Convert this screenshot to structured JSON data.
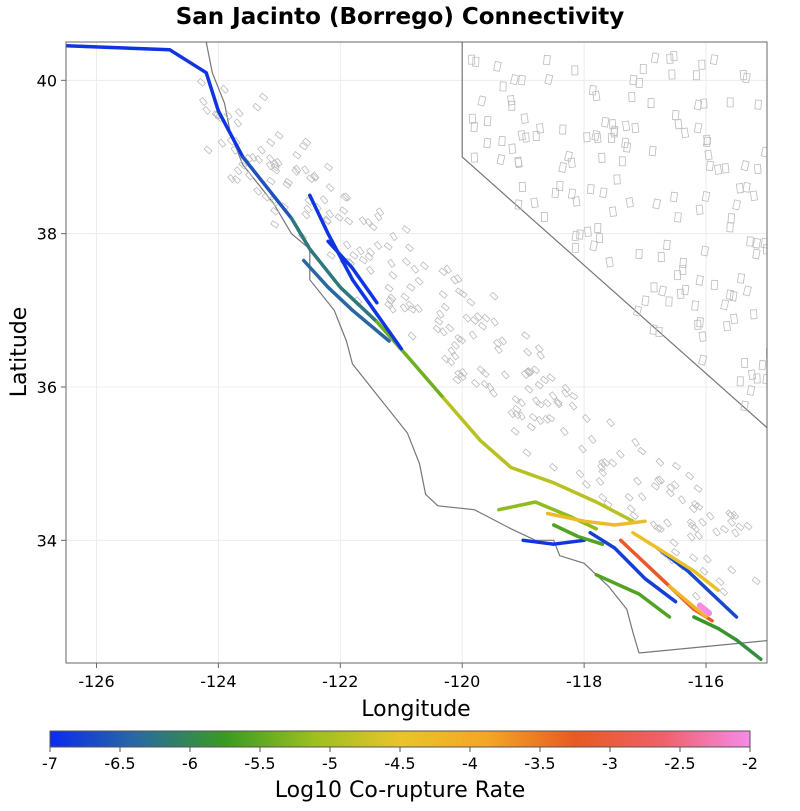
{
  "chart_data": {
    "type": "map",
    "title": "San Jacinto (Borrego) Connectivity",
    "xlabel": "Longitude",
    "ylabel": "Latitude",
    "xlim": [
      -126.5,
      -115.0
    ],
    "ylim": [
      32.4,
      40.5
    ],
    "xticks": [
      -126,
      -124,
      -122,
      -120,
      -118,
      -116
    ],
    "yticks": [
      34,
      36,
      38,
      40
    ],
    "grid": true,
    "colorbar": {
      "label": "Log10 Co-rupture Rate",
      "range": [
        -7,
        -2
      ],
      "ticks": [
        "-7",
        "-6.5",
        "-6",
        "-5.5",
        "-5",
        "-4.5",
        "-4",
        "-3.5",
        "-3",
        "-2.5",
        "-2"
      ],
      "colors": [
        "#0a2bf0",
        "#2a6aa0",
        "#3a9a22",
        "#9bbf1e",
        "#e8c52a",
        "#f5a623",
        "#e85a22",
        "#f0606a",
        "#f78ae8"
      ]
    },
    "series": [
      {
        "values": [
          [
            -126.5,
            40.45
          ],
          [
            -124.8,
            40.4
          ],
          [
            -124.2,
            40.1
          ],
          [
            -124.0,
            39.6
          ],
          [
            -123.6,
            39.0
          ]
        ],
        "log10_rate": -6.9
      },
      {
        "values": [
          [
            -123.6,
            39.0
          ],
          [
            -123.2,
            38.6
          ],
          [
            -122.8,
            38.2
          ]
        ],
        "log10_rate": -6.6
      },
      {
        "values": [
          [
            -122.8,
            38.2
          ],
          [
            -122.5,
            37.8
          ],
          [
            -122.0,
            37.3
          ],
          [
            -121.4,
            36.85
          ]
        ],
        "log10_rate": -6.2
      },
      {
        "values": [
          [
            -121.4,
            36.85
          ],
          [
            -120.9,
            36.4
          ],
          [
            -120.3,
            35.85
          ]
        ],
        "log10_rate": -5.4
      },
      {
        "values": [
          [
            -120.3,
            35.85
          ],
          [
            -119.7,
            35.3
          ],
          [
            -119.2,
            34.95
          ],
          [
            -118.5,
            34.75
          ],
          [
            -117.8,
            34.5
          ],
          [
            -117.2,
            34.25
          ]
        ],
        "log10_rate": -4.9
      },
      {
        "values": [
          [
            -122.5,
            38.5
          ],
          [
            -122.2,
            38.0
          ],
          [
            -121.8,
            37.4
          ],
          [
            -121.0,
            36.5
          ]
        ],
        "log10_rate": -6.9
      },
      {
        "values": [
          [
            -122.6,
            37.65
          ],
          [
            -122.2,
            37.3
          ],
          [
            -121.8,
            37.0
          ],
          [
            -121.2,
            36.6
          ]
        ],
        "log10_rate": -6.4
      },
      {
        "values": [
          [
            -122.2,
            37.9
          ],
          [
            -121.8,
            37.55
          ],
          [
            -121.4,
            37.1
          ]
        ],
        "log10_rate": -6.9
      },
      {
        "values": [
          [
            -119.4,
            34.4
          ],
          [
            -118.8,
            34.5
          ],
          [
            -118.2,
            34.3
          ],
          [
            -117.8,
            34.15
          ]
        ],
        "log10_rate": -5.2
      },
      {
        "values": [
          [
            -118.6,
            34.35
          ],
          [
            -118.0,
            34.25
          ],
          [
            -117.5,
            34.2
          ],
          [
            -117.0,
            34.25
          ]
        ],
        "log10_rate": -4.3
      },
      {
        "values": [
          [
            -119.0,
            34.0
          ],
          [
            -118.5,
            33.95
          ],
          [
            -118.0,
            34.0
          ]
        ],
        "log10_rate": -6.9
      },
      {
        "values": [
          [
            -118.5,
            34.2
          ],
          [
            -118.1,
            34.05
          ],
          [
            -117.7,
            33.95
          ]
        ],
        "log10_rate": -5.6
      },
      {
        "values": [
          [
            -117.9,
            34.1
          ],
          [
            -117.5,
            33.9
          ],
          [
            -117.0,
            33.5
          ],
          [
            -116.5,
            33.2
          ]
        ],
        "log10_rate": -6.8
      },
      {
        "values": [
          [
            -117.4,
            34.0
          ],
          [
            -117.0,
            33.7
          ],
          [
            -116.6,
            33.4
          ],
          [
            -116.2,
            33.1
          ],
          [
            -115.9,
            32.95
          ]
        ],
        "log10_rate": -3.2
      },
      {
        "values": [
          [
            -116.8,
            33.9
          ],
          [
            -116.3,
            33.6
          ],
          [
            -115.9,
            33.3
          ],
          [
            -115.5,
            33.0
          ]
        ],
        "log10_rate": -6.7
      },
      {
        "values": [
          [
            -117.2,
            34.1
          ],
          [
            -116.7,
            33.85
          ],
          [
            -116.2,
            33.6
          ],
          [
            -115.8,
            33.35
          ]
        ],
        "log10_rate": -4.4
      },
      {
        "values": [
          [
            -116.6,
            33.4
          ],
          [
            -116.3,
            33.2
          ],
          [
            -116.0,
            33.0
          ]
        ],
        "log10_rate": -4.2
      },
      {
        "values": [
          [
            -116.1,
            33.15
          ],
          [
            -115.95,
            33.05
          ]
        ],
        "log10_rate": -2.0
      },
      {
        "values": [
          [
            -116.2,
            33.0
          ],
          [
            -115.8,
            32.85
          ],
          [
            -115.5,
            32.7
          ]
        ],
        "log10_rate": -5.8
      },
      {
        "values": [
          [
            -115.5,
            32.7
          ],
          [
            -115.1,
            32.45
          ]
        ],
        "log10_rate": -5.9
      },
      {
        "values": [
          [
            -117.8,
            33.55
          ],
          [
            -117.1,
            33.3
          ],
          [
            -116.6,
            33.0
          ]
        ],
        "log10_rate": -5.6
      }
    ],
    "state_border": [
      [
        -120.0,
        40.5
      ],
      [
        -120.0,
        39.0
      ],
      [
        -114.9,
        35.4
      ]
    ],
    "mexico_border": [
      [
        -117.1,
        32.53
      ],
      [
        -114.9,
        32.7
      ]
    ]
  }
}
